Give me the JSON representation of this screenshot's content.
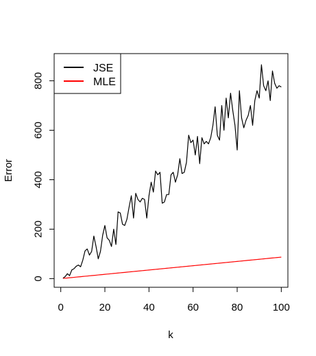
{
  "chart_data": {
    "type": "line",
    "xlabel": "k",
    "ylabel": "Error",
    "xlim": [
      -3,
      103
    ],
    "ylim": [
      -35,
      910
    ],
    "x_ticks": [
      0,
      20,
      40,
      60,
      80,
      100
    ],
    "y_ticks": [
      0,
      200,
      400,
      600,
      800
    ],
    "x_tick_labels": [
      "0",
      "20",
      "40",
      "60",
      "80",
      "100"
    ],
    "y_tick_labels": [
      "0",
      "200",
      "400",
      "600",
      "800"
    ],
    "grid": false,
    "legend_position": "top-left",
    "x": [
      1,
      2,
      3,
      4,
      5,
      6,
      7,
      8,
      9,
      10,
      11,
      12,
      13,
      14,
      15,
      16,
      17,
      18,
      19,
      20,
      21,
      22,
      23,
      24,
      25,
      26,
      27,
      28,
      29,
      30,
      31,
      32,
      33,
      34,
      35,
      36,
      37,
      38,
      39,
      40,
      41,
      42,
      43,
      44,
      45,
      46,
      47,
      48,
      49,
      50,
      51,
      52,
      53,
      54,
      55,
      56,
      57,
      58,
      59,
      60,
      61,
      62,
      63,
      64,
      65,
      66,
      67,
      68,
      69,
      70,
      71,
      72,
      73,
      74,
      75,
      76,
      77,
      78,
      79,
      80,
      81,
      82,
      83,
      84,
      85,
      86,
      87,
      88,
      89,
      90,
      91,
      92,
      93,
      94,
      95,
      96,
      97,
      98,
      99,
      100
    ],
    "series": [
      {
        "name": "JSE",
        "color": "#000000",
        "values": [
          2,
          8,
          20,
          12,
          35,
          40,
          50,
          55,
          48,
          75,
          112,
          120,
          95,
          110,
          172,
          130,
          80,
          110,
          175,
          215,
          165,
          155,
          130,
          200,
          138,
          270,
          265,
          220,
          215,
          240,
          290,
          335,
          245,
          345,
          320,
          310,
          325,
          320,
          245,
          335,
          390,
          350,
          435,
          420,
          430,
          305,
          310,
          340,
          340,
          420,
          430,
          390,
          420,
          485,
          425,
          430,
          470,
          580,
          550,
          560,
          500,
          575,
          465,
          570,
          545,
          555,
          545,
          570,
          620,
          695,
          580,
          560,
          700,
          600,
          730,
          650,
          750,
          680,
          620,
          520,
          760,
          650,
          610,
          640,
          660,
          700,
          620,
          720,
          760,
          730,
          865,
          780,
          760,
          800,
          720,
          840,
          790,
          770,
          780,
          775
        ]
      },
      {
        "name": "MLE",
        "color": "#ff0000",
        "values": [
          0.9,
          1.7,
          2.6,
          3.5,
          4.3,
          5.2,
          6.1,
          7.0,
          7.8,
          8.7,
          9.6,
          10.4,
          11.3,
          12.2,
          13.0,
          13.9,
          14.8,
          15.7,
          16.5,
          17.4,
          18.3,
          19.1,
          20.0,
          20.9,
          21.8,
          22.6,
          23.5,
          24.4,
          25.2,
          26.1,
          27.0,
          27.8,
          28.7,
          29.6,
          30.5,
          31.3,
          32.2,
          33.1,
          33.9,
          34.8,
          35.7,
          36.5,
          37.4,
          38.3,
          39.2,
          40.0,
          40.9,
          41.8,
          42.6,
          43.5,
          44.4,
          45.2,
          46.1,
          47.0,
          47.9,
          48.7,
          49.6,
          50.5,
          51.3,
          52.2,
          53.1,
          53.9,
          54.8,
          55.7,
          56.6,
          57.4,
          58.3,
          59.2,
          60.0,
          60.9,
          61.8,
          62.6,
          63.5,
          64.4,
          65.3,
          66.1,
          67.0,
          67.9,
          68.7,
          69.6,
          70.5,
          71.3,
          72.2,
          73.1,
          74.0,
          74.8,
          75.7,
          76.6,
          77.4,
          78.3,
          79.2,
          80.0,
          80.9,
          81.8,
          82.7,
          83.5,
          84.4,
          85.3,
          86.1,
          87.0
        ]
      }
    ]
  }
}
